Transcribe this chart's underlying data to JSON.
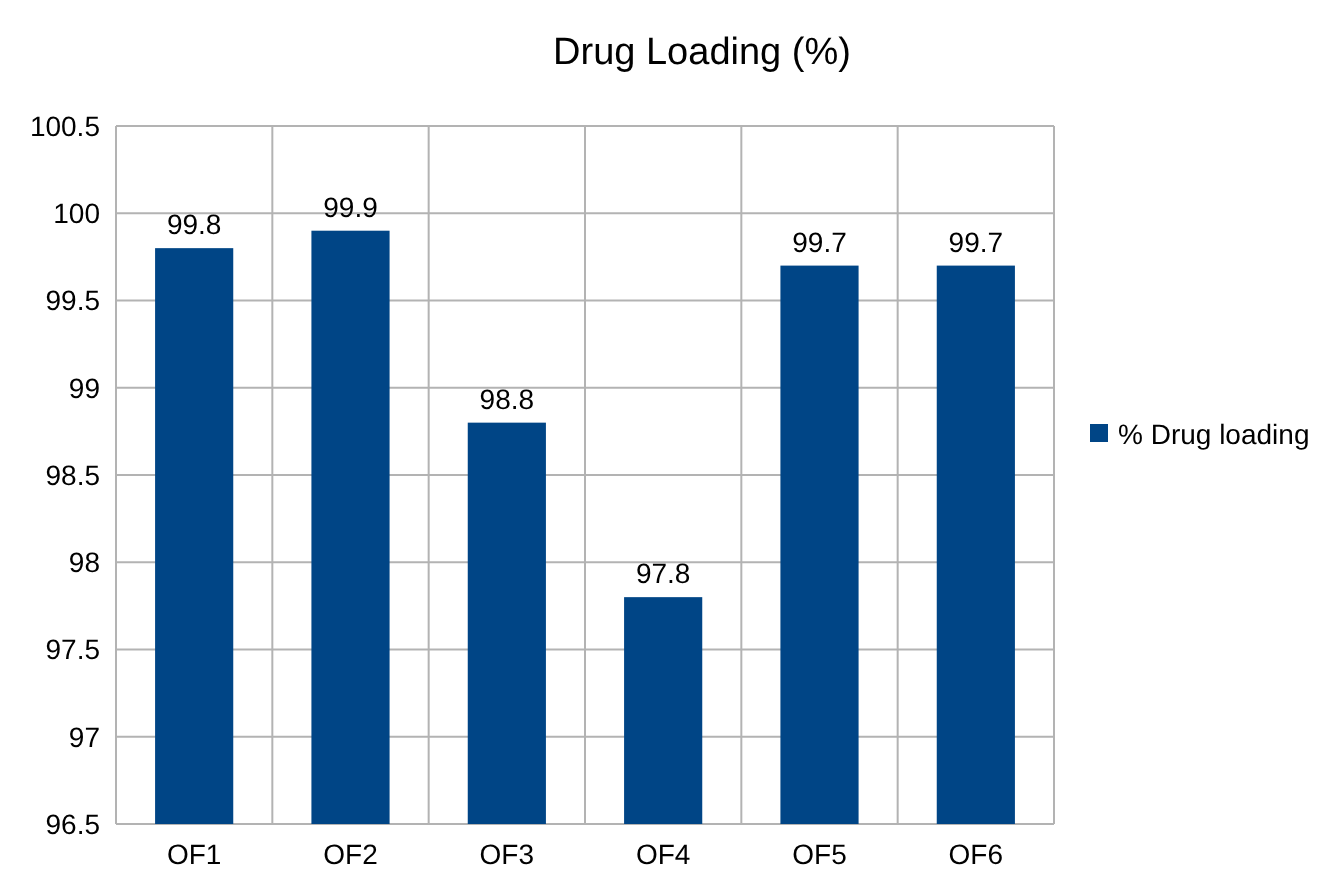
{
  "chart_data": {
    "type": "bar",
    "title": "Drug Loading (%)",
    "categories": [
      "OF1",
      "OF2",
      "OF3",
      "OF4",
      "OF5",
      "OF6"
    ],
    "series": [
      {
        "name": "% Drug loading",
        "color": "#004586",
        "values": [
          99.8,
          99.9,
          98.8,
          97.8,
          99.7,
          99.7
        ]
      }
    ],
    "ylim": [
      96.5,
      100.5
    ],
    "yticks": [
      96.5,
      97,
      97.5,
      98,
      98.5,
      99,
      99.5,
      100,
      100.5
    ],
    "grid": true,
    "legend": "right",
    "data_labels": true
  }
}
